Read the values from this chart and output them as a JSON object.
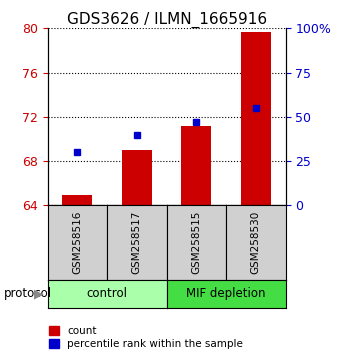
{
  "title": "GDS3626 / ILMN_1665916",
  "samples": [
    "GSM258516",
    "GSM258517",
    "GSM258515",
    "GSM258530"
  ],
  "counts": [
    64.9,
    69.0,
    71.2,
    79.7
  ],
  "percentiles": [
    30.0,
    40.0,
    47.0,
    55.0
  ],
  "ylim_left": [
    64,
    80
  ],
  "ylim_right": [
    0,
    100
  ],
  "yticks_left": [
    64,
    68,
    72,
    76,
    80
  ],
  "yticks_right": [
    0,
    25,
    50,
    75,
    100
  ],
  "yticklabels_right": [
    "0",
    "25",
    "50",
    "75",
    "100%"
  ],
  "bar_color": "#cc0000",
  "dot_color": "#0000cc",
  "group_info": [
    {
      "label": "control",
      "start": 0,
      "end": 1,
      "color": "#aaffaa"
    },
    {
      "label": "MIF depletion",
      "start": 2,
      "end": 3,
      "color": "#44dd44"
    }
  ],
  "sample_bg_color": "#d0d0d0",
  "protocol_label": "protocol",
  "legend_count_label": "count",
  "legend_percentile_label": "percentile rank within the sample",
  "title_fontsize": 11,
  "left_color": "#cc0000",
  "right_color": "#0000cc",
  "bar_width": 0.5
}
